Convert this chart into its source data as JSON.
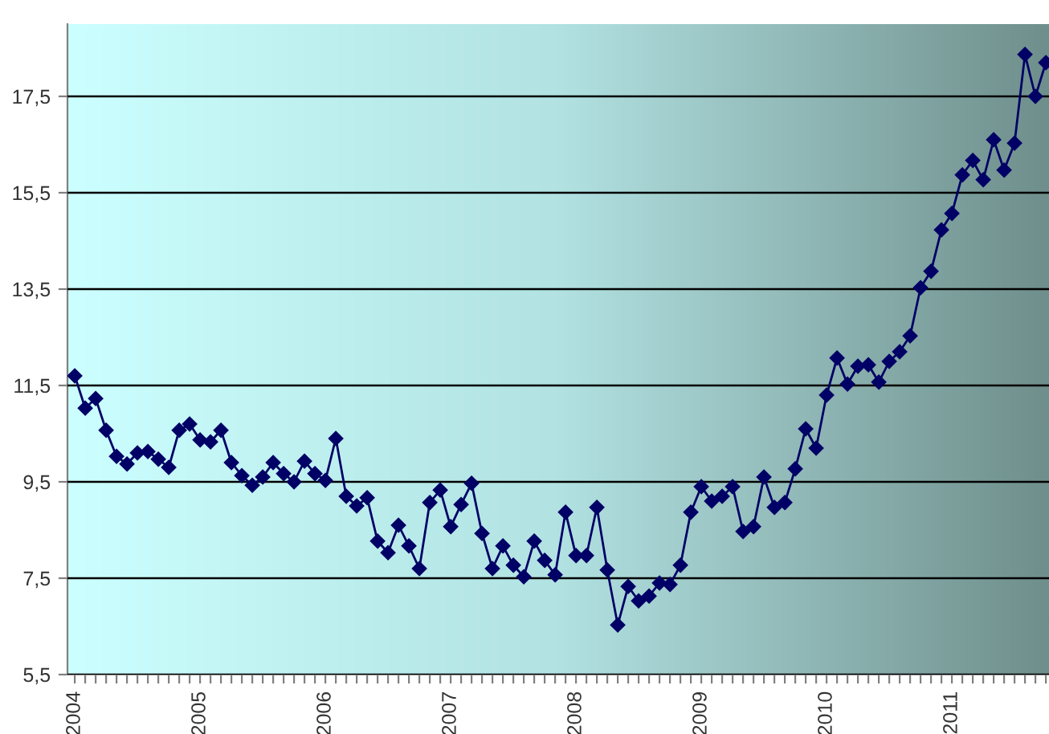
{
  "chart_data": {
    "type": "line",
    "categories": [
      "2004",
      null,
      null,
      null,
      null,
      null,
      null,
      null,
      null,
      null,
      null,
      null,
      "2005",
      null,
      null,
      null,
      null,
      null,
      null,
      null,
      null,
      null,
      null,
      null,
      "2006",
      null,
      null,
      null,
      null,
      null,
      null,
      null,
      null,
      null,
      null,
      null,
      "2007",
      null,
      null,
      null,
      null,
      null,
      null,
      null,
      null,
      null,
      null,
      null,
      "2008",
      null,
      null,
      null,
      null,
      null,
      null,
      null,
      null,
      null,
      null,
      null,
      "2009",
      null,
      null,
      null,
      null,
      null,
      null,
      null,
      null,
      null,
      null,
      null,
      "2010",
      null,
      null,
      null,
      null,
      null,
      null,
      null,
      null,
      null,
      null,
      null,
      "2011",
      null,
      null,
      null,
      null,
      null,
      null,
      null,
      null,
      null
    ],
    "series": [
      {
        "color": "#000066",
        "values": [
          11.7,
          11.03,
          11.23,
          10.57,
          10.03,
          9.87,
          10.1,
          10.13,
          9.97,
          9.8,
          10.57,
          10.7,
          10.37,
          10.33,
          10.57,
          9.9,
          9.63,
          9.43,
          9.6,
          9.9,
          9.67,
          9.5,
          9.93,
          9.67,
          9.53,
          10.4,
          9.2,
          9.0,
          9.17,
          8.27,
          8.03,
          8.6,
          8.17,
          7.7,
          9.07,
          9.33,
          8.57,
          9.03,
          9.47,
          8.43,
          7.7,
          8.17,
          7.77,
          7.53,
          8.27,
          7.87,
          7.57,
          8.87,
          7.97,
          7.97,
          8.97,
          7.67,
          6.53,
          7.33,
          7.03,
          7.13,
          7.4,
          7.37,
          7.77,
          8.87,
          9.4,
          9.1,
          9.2,
          9.4,
          8.47,
          8.57,
          9.6,
          8.97,
          9.07,
          9.77,
          10.6,
          10.2,
          11.3,
          12.07,
          11.53,
          11.9,
          11.93,
          11.57,
          12.0,
          12.2,
          12.53,
          13.53,
          13.87,
          14.73,
          15.07,
          15.87,
          16.17,
          15.77,
          16.6,
          15.97,
          16.53,
          18.37,
          17.5,
          18.2
        ]
      }
    ],
    "ylim": [
      5.5,
      19
    ],
    "yticks": [
      {
        "value": 5.5,
        "label": "5,5"
      },
      {
        "value": 7.5,
        "label": "7,5"
      },
      {
        "value": 9.5,
        "label": "9,5"
      },
      {
        "value": 11.5,
        "label": "11,5"
      },
      {
        "value": 13.5,
        "label": "13,5"
      },
      {
        "value": 15.5,
        "label": "15,5"
      },
      {
        "value": 17.5,
        "label": "17,5"
      }
    ],
    "grid": "y",
    "marker": "diamond",
    "line_style": "solid",
    "legend": false
  }
}
